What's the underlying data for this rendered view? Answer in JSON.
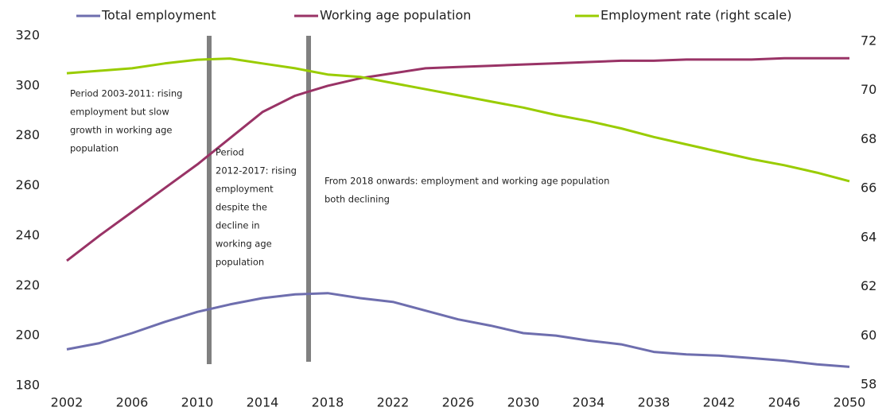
{
  "chart_data": {
    "type": "line",
    "x": [
      2002,
      2004,
      2006,
      2008,
      2010,
      2012,
      2014,
      2016,
      2018,
      2020,
      2022,
      2024,
      2026,
      2028,
      2030,
      2032,
      2034,
      2036,
      2038,
      2040,
      2042,
      2044,
      2046,
      2048,
      2050
    ],
    "series": [
      {
        "name": "Total employment",
        "color": "#6e6eae",
        "values": [
          194.5,
          197,
          201,
          205.5,
          209.5,
          212.5,
          215,
          216.5,
          217,
          215,
          213.5,
          210,
          206.5,
          204,
          201,
          200,
          198,
          196.5,
          193.5,
          192.5,
          192,
          191,
          190,
          188.5,
          187.5
        ]
      },
      {
        "name": "Working age population",
        "color": "#993366",
        "values": [
          230,
          240,
          249.5,
          259,
          268.5,
          279,
          289.5,
          296,
          300,
          303,
          305,
          307,
          307.5,
          308,
          308.5,
          309,
          309.5,
          310,
          310,
          310.5,
          310.5,
          310.5,
          311,
          311,
          311
        ]
      },
      {
        "name": "Employment rate (right scale)",
        "color": "#99cc00",
        "axis": "y2",
        "values": [
          70.7,
          70.8,
          70.9,
          71.1,
          71.25,
          71.3,
          71.1,
          70.9,
          70.65,
          70.55,
          70.3,
          70.05,
          69.8,
          69.55,
          69.3,
          69.0,
          68.75,
          68.45,
          68.1,
          67.8,
          67.5,
          67.2,
          66.95,
          66.65,
          66.3
        ]
      }
    ],
    "xlim": [
      2002,
      2050
    ],
    "xticks": [
      2002,
      2006,
      2010,
      2014,
      2018,
      2022,
      2026,
      2030,
      2034,
      2038,
      2042,
      2046,
      2050
    ],
    "ylim": [
      180,
      320
    ],
    "yticks": [
      180,
      200,
      220,
      240,
      260,
      280,
      300,
      320
    ],
    "y2lim": [
      58,
      72
    ],
    "y2ticks": [
      58,
      60,
      62,
      64,
      66,
      68,
      70,
      72
    ],
    "annotations": [
      [
        "Period 2003-2011: rising",
        "employment but slow",
        "growth in working age",
        "population"
      ],
      [
        "Period",
        "2012-2017: rising",
        "employment",
        "despite the",
        "decline in",
        "working age",
        "population"
      ],
      [
        "From 2018 onwards: employment and working age population",
        "both declining"
      ]
    ]
  }
}
